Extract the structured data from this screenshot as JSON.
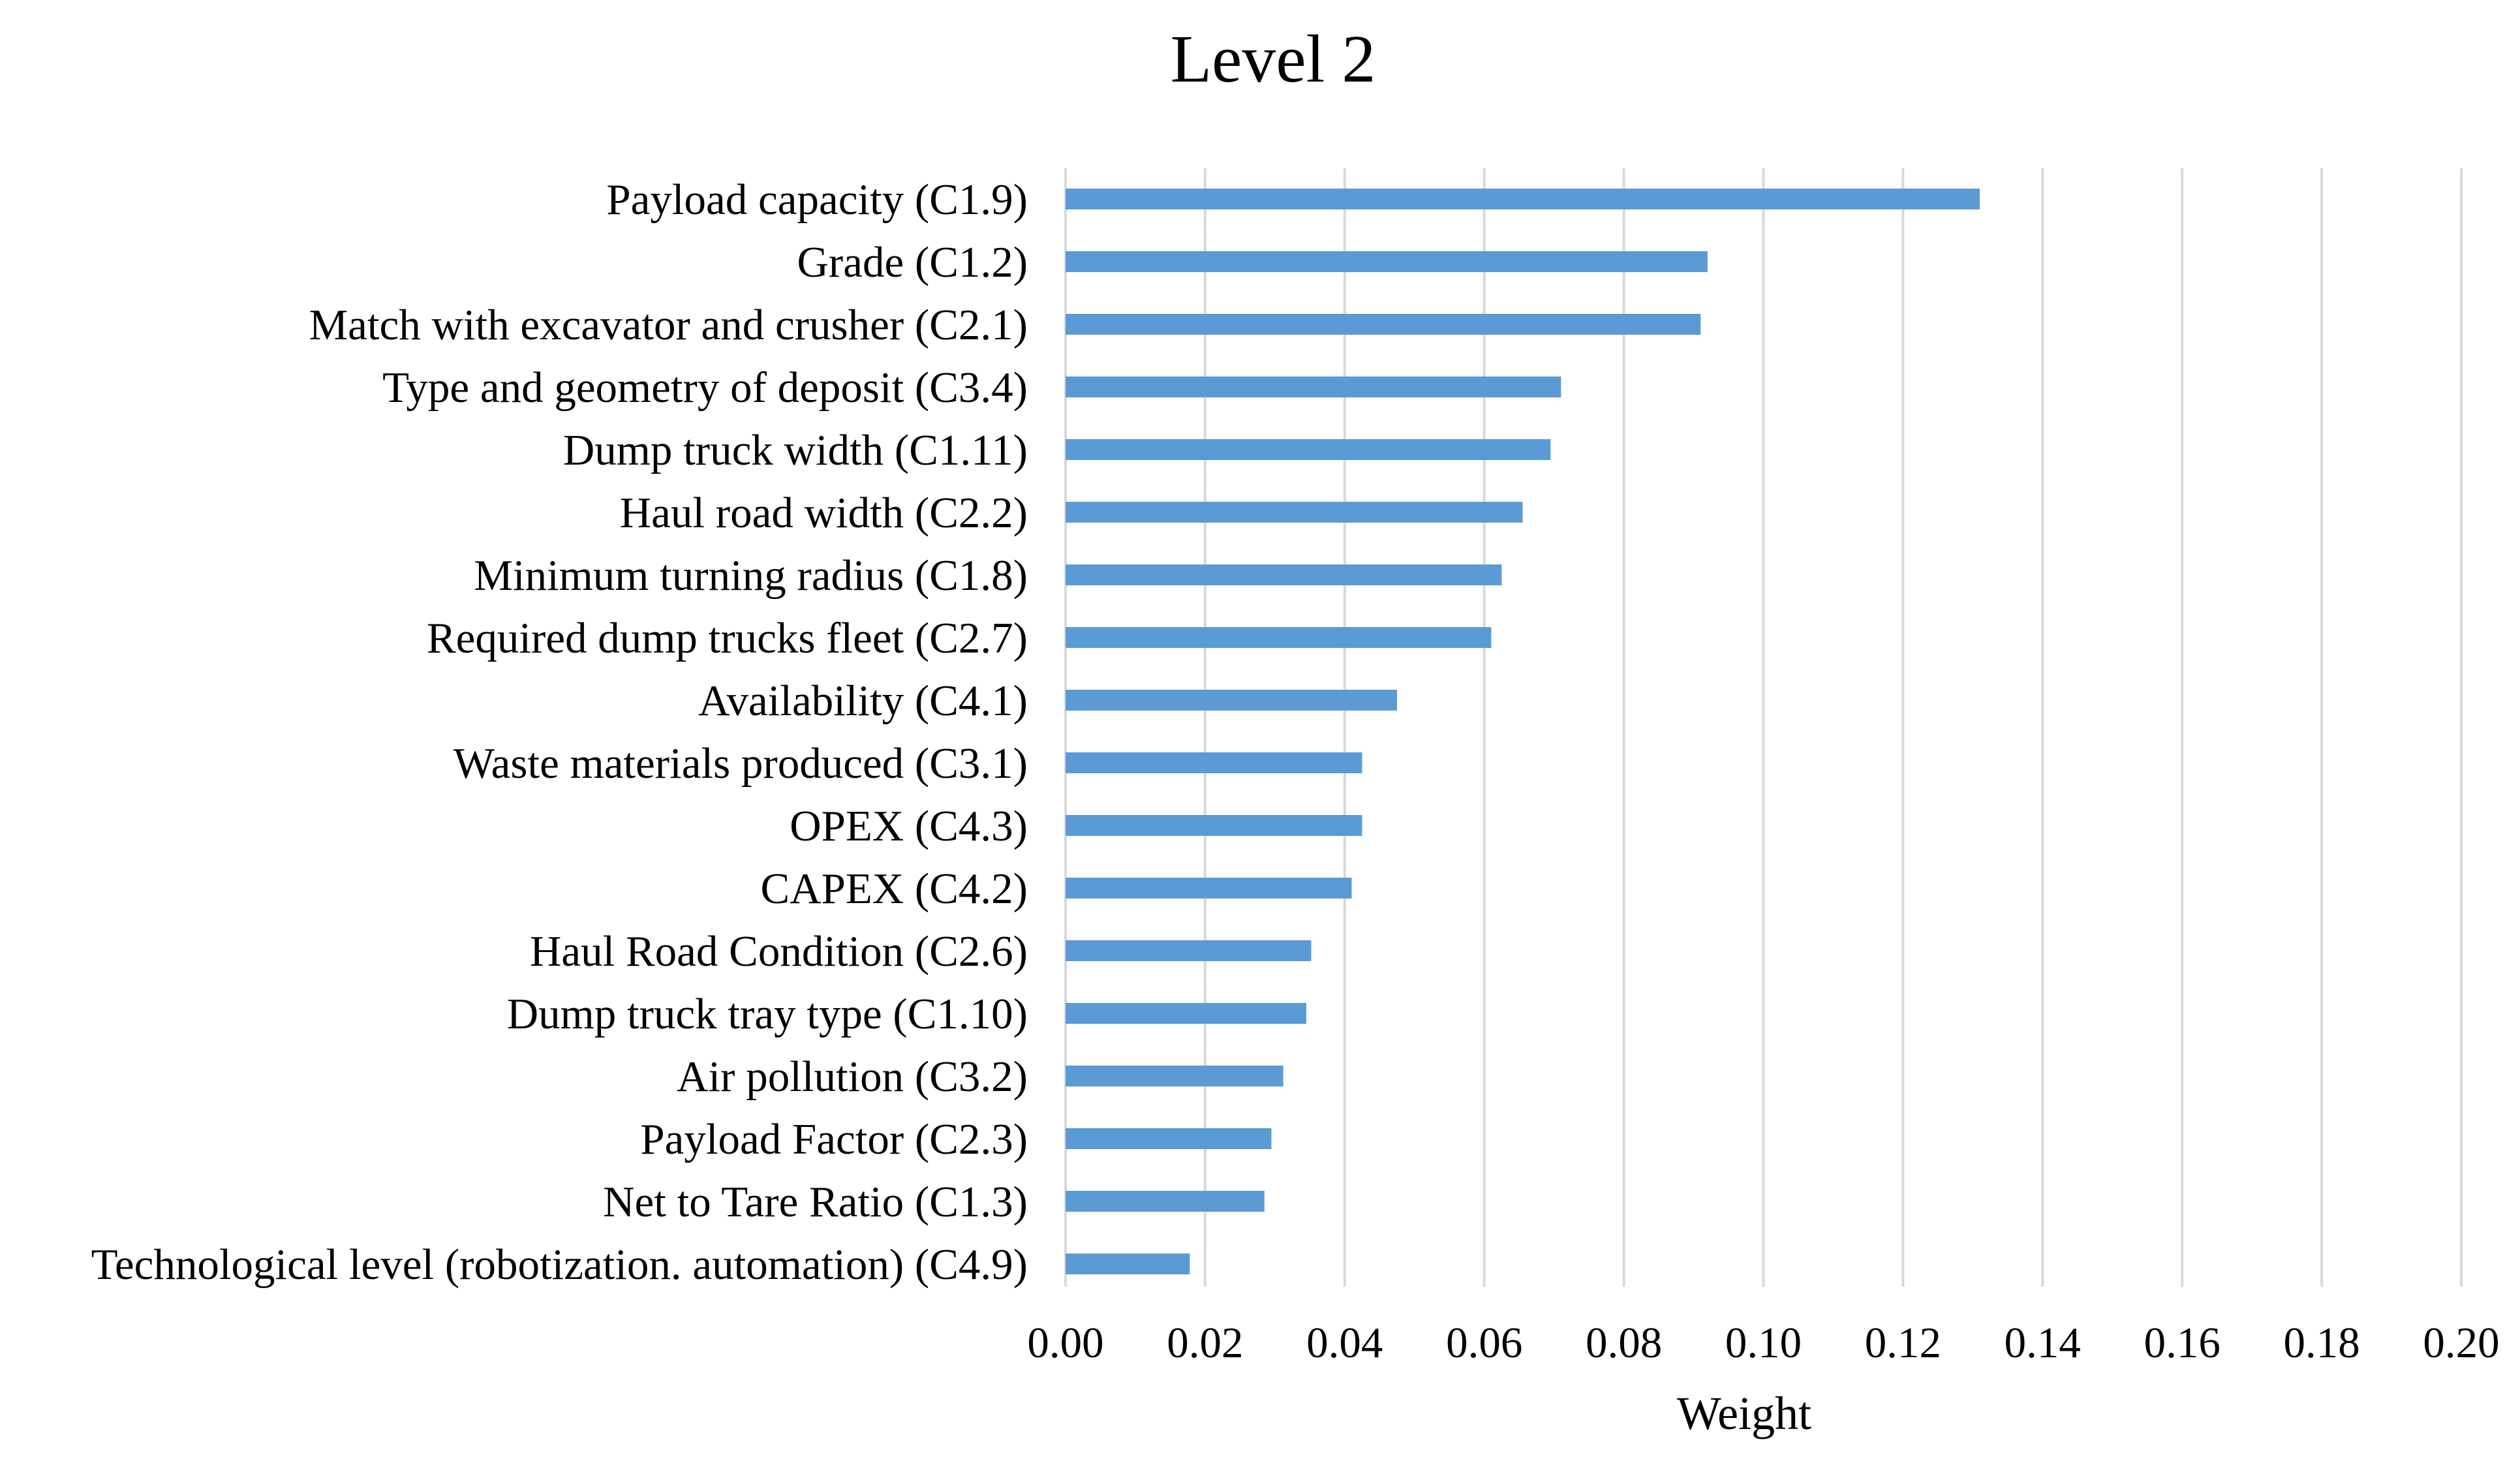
{
  "chart_data": {
    "type": "bar",
    "orientation": "horizontal",
    "title": "Level 2",
    "xlabel": "Weight",
    "ylabel": "",
    "xlim": [
      0,
      0.2
    ],
    "x_ticks": [
      "0.00",
      "0.02",
      "0.04",
      "0.06",
      "0.08",
      "0.10",
      "0.12",
      "0.14",
      "0.16",
      "0.18",
      "0.20"
    ],
    "grid": true,
    "legend": "none",
    "bar_color": "#5b9bd5",
    "grid_color": "#d9d9d9",
    "categories": [
      "Payload capacity (C1.9)",
      "Grade (C1.2)",
      "Match with excavator and crusher (C2.1)",
      "Type and geometry of deposit (C3.4)",
      "Dump truck width (C1.11)",
      "Haul road width (C2.2)",
      "Minimum turning radius (C1.8)",
      "Required dump trucks fleet (C2.7)",
      "Availability (C4.1)",
      "Waste materials produced (C3.1)",
      "OPEX (C4.3)",
      "CAPEX (C4.2)",
      "Haul Road Condition (C2.6)",
      "Dump truck tray type (C1.10)",
      "Air pollution (C3.2)",
      "Payload Factor (C2.3)",
      "Net to Tare Ratio (C1.3)",
      "Technological level (robotization. automation) (C4.9)"
    ],
    "values": [
      0.131,
      0.092,
      0.091,
      0.071,
      0.0695,
      0.0655,
      0.0625,
      0.061,
      0.0475,
      0.0425,
      0.0425,
      0.041,
      0.0352,
      0.0345,
      0.0312,
      0.0295,
      0.0285,
      0.0178
    ]
  }
}
